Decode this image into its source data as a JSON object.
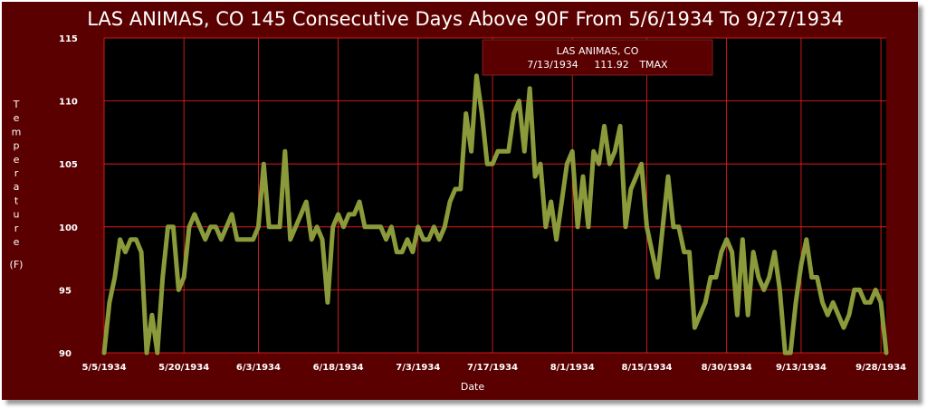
{
  "colors": {
    "frame": "#5a0000",
    "plot_bg": "#000000",
    "grid": "#ff2020",
    "series": "#8b9a3a",
    "text": "#ffffff",
    "tooltip_bg": "#5a0000"
  },
  "tooltip": {
    "station": "LAS ANIMAS, CO",
    "date": "7/13/1934",
    "value": "111.92",
    "element": "TMAX"
  },
  "chart_data": {
    "type": "line",
    "title": "LAS ANIMAS, CO  145 Consecutive Days Above 90F From 5/6/1934 To 9/27/1934",
    "xlabel": "Date",
    "ylabel_chars": [
      "T",
      "e",
      "m",
      "p",
      "e",
      "r",
      "a",
      "t",
      "u",
      "r",
      "e"
    ],
    "ylabel_unit": "(F)",
    "ylim": [
      90,
      115
    ],
    "yticks": [
      90,
      95,
      100,
      105,
      110,
      115
    ],
    "xlim": [
      "5/5/1934",
      "9/29/1934"
    ],
    "xticks": [
      "5/5/1934",
      "5/20/1934",
      "6/3/1934",
      "6/18/1934",
      "7/3/1934",
      "7/17/1934",
      "8/1/1934",
      "8/15/1934",
      "8/30/1934",
      "9/13/1934",
      "9/28/1934"
    ],
    "grid": true,
    "series": [
      {
        "start": "5/5/1934",
        "values": [
          90,
          94,
          96,
          99,
          98,
          99,
          99,
          98,
          90,
          93,
          90,
          96,
          100,
          100,
          95,
          96,
          100,
          101,
          100,
          99,
          100,
          100,
          99,
          100,
          101,
          99,
          99,
          99,
          99,
          100,
          105,
          100,
          100,
          100,
          106,
          99,
          100,
          101,
          102,
          99,
          100,
          99,
          94,
          100,
          101,
          100,
          101,
          101,
          102,
          100,
          100,
          100,
          100,
          99,
          100,
          98,
          98,
          99,
          98,
          100,
          99,
          99,
          100,
          99,
          100,
          102,
          103,
          103,
          109,
          106,
          112,
          109,
          105,
          105,
          106,
          106,
          106,
          109,
          110,
          106,
          111,
          104,
          105,
          100,
          102,
          99,
          102,
          105,
          106,
          100,
          104,
          100,
          106,
          105,
          108,
          105,
          106,
          108,
          100,
          103,
          104,
          105,
          100,
          98,
          96,
          100,
          104,
          100,
          100,
          98,
          98,
          92,
          93,
          94,
          96,
          96,
          98,
          99,
          98,
          93,
          99,
          93,
          98,
          96,
          95,
          96,
          98,
          95,
          90,
          90,
          94,
          97,
          99,
          96,
          96,
          94,
          93,
          94,
          93,
          92,
          93,
          95,
          95,
          94,
          94,
          95,
          94,
          90
        ]
      }
    ]
  }
}
